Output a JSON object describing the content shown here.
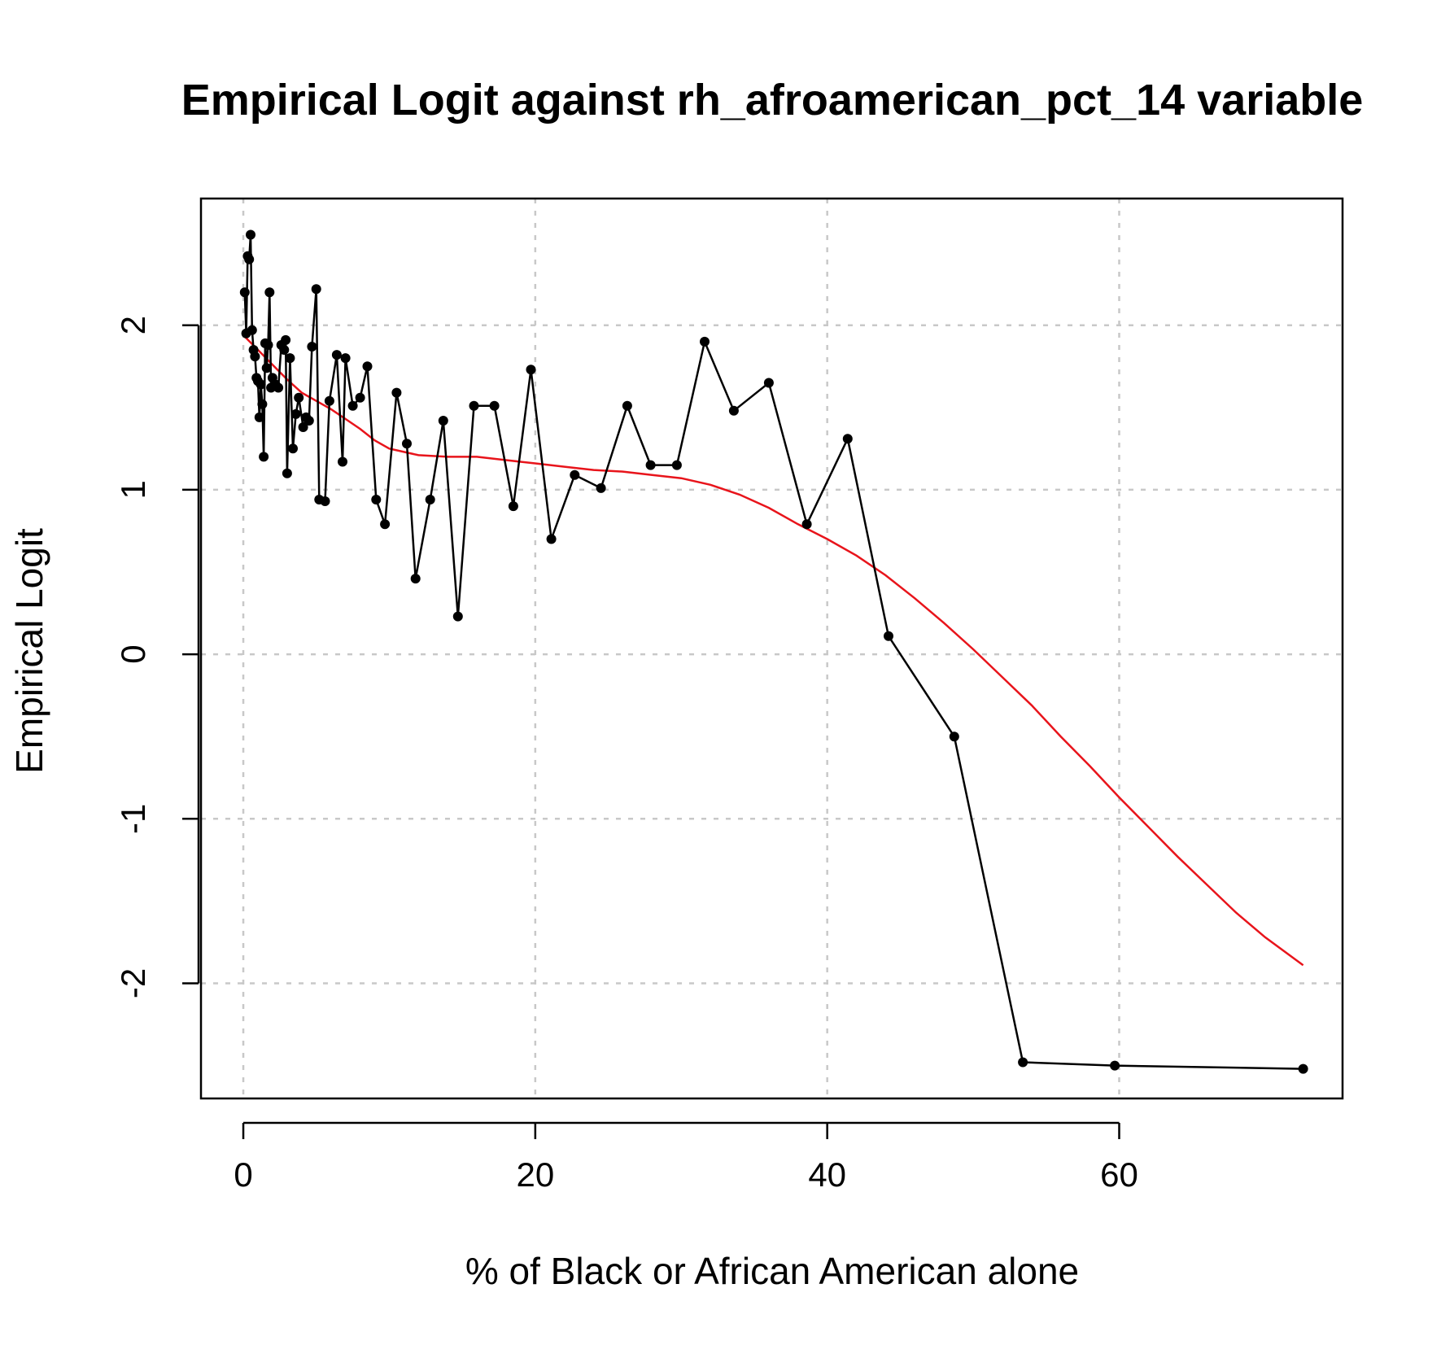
{
  "chart_data": {
    "type": "line",
    "title": "Empirical Logit against rh_afroamerican_pct_14 variable",
    "xlabel": "% of Black or African American alone",
    "ylabel": "Empirical Logit",
    "xlim": [
      -2.9,
      75.3
    ],
    "ylim": [
      -2.7,
      2.77
    ],
    "xticks": [
      0,
      20,
      40,
      60
    ],
    "xtick_labels": [
      "0",
      "20",
      "40",
      "60"
    ],
    "yticks": [
      -2,
      -1,
      0,
      1,
      2
    ],
    "ytick_labels": [
      "-2",
      "-1",
      "0",
      "1",
      "2"
    ],
    "grid": true,
    "series": [
      {
        "color": "#000000",
        "style": "line+points",
        "points": [
          [
            0.1,
            2.2
          ],
          [
            0.2,
            1.95
          ],
          [
            0.3,
            2.42
          ],
          [
            0.4,
            2.4
          ],
          [
            0.5,
            2.55
          ],
          [
            0.6,
            1.97
          ],
          [
            0.7,
            1.85
          ],
          [
            0.8,
            1.81
          ],
          [
            0.9,
            1.68
          ],
          [
            1.0,
            1.66
          ],
          [
            1.1,
            1.44
          ],
          [
            1.2,
            1.64
          ],
          [
            1.3,
            1.52
          ],
          [
            1.4,
            1.2
          ],
          [
            1.5,
            1.89
          ],
          [
            1.6,
            1.74
          ],
          [
            1.7,
            1.88
          ],
          [
            1.8,
            2.2
          ],
          [
            1.9,
            1.62
          ],
          [
            2.0,
            1.68
          ],
          [
            2.2,
            1.64
          ],
          [
            2.4,
            1.62
          ],
          [
            2.6,
            1.88
          ],
          [
            2.8,
            1.85
          ],
          [
            2.9,
            1.91
          ],
          [
            3.0,
            1.1
          ],
          [
            3.2,
            1.8
          ],
          [
            3.4,
            1.25
          ],
          [
            3.6,
            1.46
          ],
          [
            3.8,
            1.56
          ],
          [
            4.1,
            1.38
          ],
          [
            4.3,
            1.44
          ],
          [
            4.5,
            1.42
          ],
          [
            4.7,
            1.87
          ],
          [
            5.0,
            2.22
          ],
          [
            5.2,
            0.94
          ],
          [
            5.6,
            0.93
          ],
          [
            5.9,
            1.54
          ],
          [
            6.4,
            1.82
          ],
          [
            6.8,
            1.17
          ],
          [
            7.0,
            1.8
          ],
          [
            7.5,
            1.51
          ],
          [
            8.0,
            1.56
          ],
          [
            8.5,
            1.75
          ],
          [
            9.1,
            0.94
          ],
          [
            9.7,
            0.79
          ],
          [
            10.5,
            1.59
          ],
          [
            11.2,
            1.28
          ],
          [
            11.8,
            0.46
          ],
          [
            12.8,
            0.94
          ],
          [
            13.7,
            1.42
          ],
          [
            14.7,
            0.23
          ],
          [
            15.8,
            1.51
          ],
          [
            17.2,
            1.51
          ],
          [
            18.5,
            0.9
          ],
          [
            19.7,
            1.73
          ],
          [
            21.1,
            0.7
          ],
          [
            22.7,
            1.09
          ],
          [
            24.5,
            1.01
          ],
          [
            26.3,
            1.51
          ],
          [
            27.9,
            1.15
          ],
          [
            29.7,
            1.15
          ],
          [
            31.6,
            1.9
          ],
          [
            33.6,
            1.48
          ],
          [
            36.0,
            1.65
          ],
          [
            38.6,
            0.79
          ],
          [
            41.4,
            1.31
          ],
          [
            44.2,
            0.11
          ],
          [
            48.7,
            -0.5
          ],
          [
            53.4,
            -2.48
          ],
          [
            59.7,
            -2.5
          ],
          [
            72.6,
            -2.52
          ]
        ]
      },
      {
        "color": "#e8141b",
        "style": "smooth",
        "points": [
          [
            0.1,
            1.93
          ],
          [
            1.0,
            1.85
          ],
          [
            2.0,
            1.76
          ],
          [
            3.0,
            1.67
          ],
          [
            4.0,
            1.59
          ],
          [
            5.0,
            1.54
          ],
          [
            6.0,
            1.49
          ],
          [
            7.0,
            1.43
          ],
          [
            8.0,
            1.37
          ],
          [
            9.0,
            1.3
          ],
          [
            10.0,
            1.25
          ],
          [
            11.0,
            1.23
          ],
          [
            12.0,
            1.21
          ],
          [
            14.0,
            1.2
          ],
          [
            16.0,
            1.2
          ],
          [
            18.0,
            1.18
          ],
          [
            20.0,
            1.16
          ],
          [
            22.0,
            1.14
          ],
          [
            24.0,
            1.12
          ],
          [
            26.0,
            1.11
          ],
          [
            28.0,
            1.09
          ],
          [
            30.0,
            1.07
          ],
          [
            32.0,
            1.03
          ],
          [
            34.0,
            0.97
          ],
          [
            36.0,
            0.89
          ],
          [
            38.0,
            0.79
          ],
          [
            40.0,
            0.7
          ],
          [
            42.0,
            0.6
          ],
          [
            44.0,
            0.48
          ],
          [
            46.0,
            0.34
          ],
          [
            48.0,
            0.19
          ],
          [
            50.0,
            0.03
          ],
          [
            52.0,
            -0.14
          ],
          [
            54.0,
            -0.31
          ],
          [
            56.0,
            -0.5
          ],
          [
            58.0,
            -0.68
          ],
          [
            60.0,
            -0.87
          ],
          [
            62.0,
            -1.05
          ],
          [
            64.0,
            -1.23
          ],
          [
            66.0,
            -1.4
          ],
          [
            68.0,
            -1.57
          ],
          [
            70.0,
            -1.72
          ],
          [
            72.6,
            -1.89
          ]
        ]
      }
    ]
  }
}
